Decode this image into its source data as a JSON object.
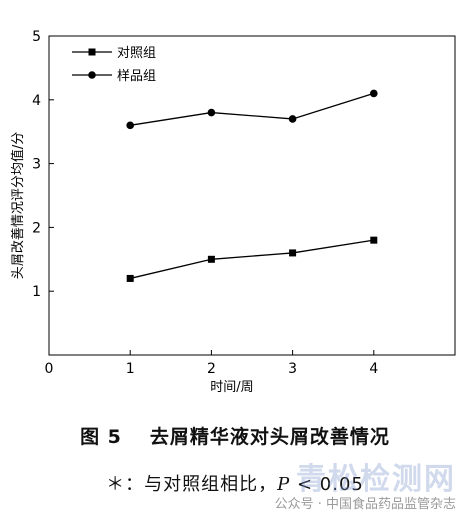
{
  "chart_data": {
    "type": "line",
    "x": [
      1,
      2,
      3,
      4
    ],
    "series": [
      {
        "name": "对照组",
        "marker": "square",
        "values": [
          1.2,
          1.5,
          1.6,
          1.8
        ]
      },
      {
        "name": "样品组",
        "marker": "circle",
        "values": [
          3.6,
          3.8,
          3.7,
          4.1
        ]
      }
    ],
    "xlabel": "时间/周",
    "ylabel": "头屑改善情况评分均值/分",
    "xlim": [
      0,
      5
    ],
    "ylim": [
      0,
      5
    ],
    "xticks": [
      "0",
      "1",
      "2",
      "3",
      "4"
    ],
    "yticks": [
      "1",
      "2",
      "3",
      "4",
      "5"
    ],
    "grid": false,
    "legend": "top-left",
    "line_color": "#000000"
  },
  "caption": {
    "figure_no": "图 5",
    "title": "去屑精华液对头屑改善情况"
  },
  "footnote": {
    "prefix": "＊：与对照组相比，",
    "p_symbol": "P",
    "suffix": " < 0.05"
  },
  "watermark": {
    "logo_text": "青松检测网",
    "text": "公众号 · 中国食品药品监管杂志"
  }
}
